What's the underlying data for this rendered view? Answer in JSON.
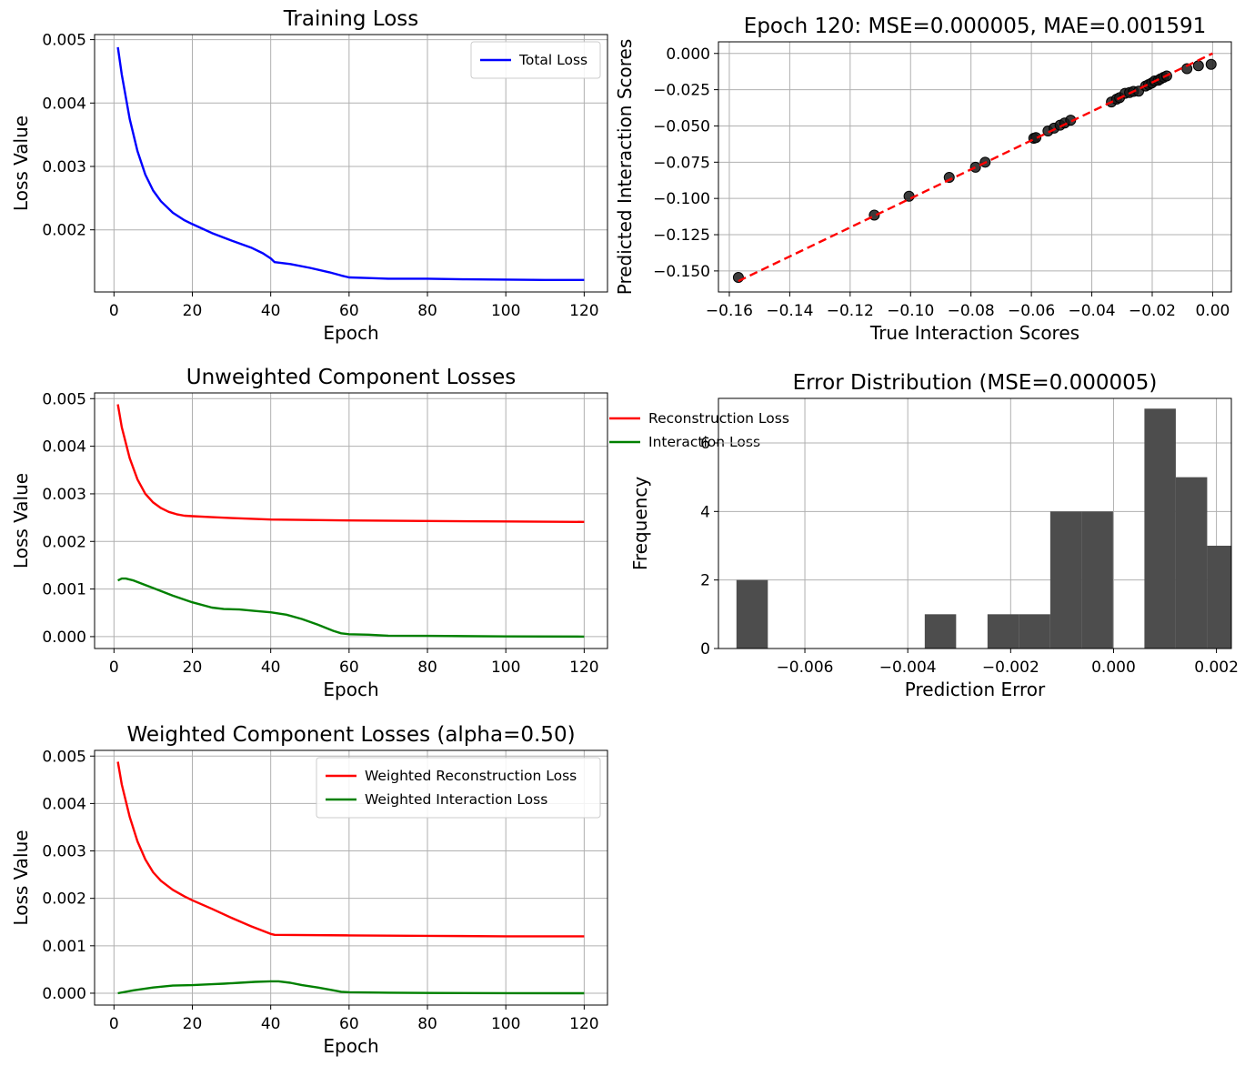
{
  "chart_data": [
    {
      "type": "line",
      "title": "Training Loss",
      "xlabel": "Epoch",
      "ylabel": "Loss Value",
      "xlim": [
        -4.95,
        125.95
      ],
      "ylim": [
        1.02,
        5.08
      ],
      "y_scale": 0.001,
      "xticks": [
        "0",
        "20",
        "40",
        "60",
        "80",
        "100",
        "120"
      ],
      "yticks": [
        "0.002",
        "0.003",
        "0.004",
        "0.005"
      ],
      "grid": true,
      "legend_position": "top-right",
      "series": [
        {
          "name": "Total Loss",
          "color": "#0000ff",
          "x": [
            1,
            2,
            4,
            6,
            8,
            10,
            12,
            15,
            18,
            20,
            25,
            30,
            35,
            38,
            40,
            41,
            45,
            50,
            55,
            58,
            60,
            65,
            70,
            80,
            90,
            100,
            110,
            120
          ],
          "y": [
            4.88,
            4.45,
            3.75,
            3.24,
            2.87,
            2.62,
            2.45,
            2.27,
            2.15,
            2.09,
            1.95,
            1.83,
            1.72,
            1.63,
            1.55,
            1.49,
            1.46,
            1.4,
            1.33,
            1.28,
            1.25,
            1.24,
            1.23,
            1.23,
            1.22,
            1.215,
            1.21,
            1.21
          ]
        }
      ]
    },
    {
      "type": "scatter",
      "title": "Epoch 120: MSE=0.000005, MAE=0.001591",
      "xlabel": "True Interaction Scores",
      "ylabel": "Predicted Interaction Scores",
      "xlim": [
        -0.1636,
        0.0062
      ],
      "ylim": [
        -0.1645,
        0.008
      ],
      "xticks": [
        "−0.16",
        "−0.14",
        "−0.12",
        "−0.10",
        "−0.08",
        "−0.06",
        "−0.04",
        "−0.02",
        "0.00"
      ],
      "yticks": [
        "0.000",
        "−0.025",
        "−0.050",
        "−0.075",
        "−0.100",
        "−0.125",
        "−0.150"
      ],
      "grid": true,
      "reference_line": {
        "style": "dashed",
        "color": "#ff0000",
        "x": [
          -0.157,
          0.0
        ],
        "y": [
          -0.157,
          0.0
        ]
      },
      "series": [
        {
          "name": "",
          "color": "#1a1a1a",
          "x": [
            -0.157,
            -0.112,
            -0.1005,
            -0.0872,
            -0.0785,
            -0.0753,
            -0.0592,
            -0.0585,
            -0.0545,
            -0.0525,
            -0.0505,
            -0.049,
            -0.047,
            -0.0335,
            -0.0318,
            -0.0308,
            -0.029,
            -0.0275,
            -0.0262,
            -0.0245,
            -0.0222,
            -0.0212,
            -0.0202,
            -0.0192,
            -0.018,
            -0.0172,
            -0.0162,
            -0.0152,
            -0.0085,
            -0.0047,
            -0.0005
          ],
          "y": [
            -0.1545,
            -0.1115,
            -0.0985,
            -0.0855,
            -0.0785,
            -0.075,
            -0.0585,
            -0.058,
            -0.0535,
            -0.0515,
            -0.0495,
            -0.048,
            -0.046,
            -0.0335,
            -0.0315,
            -0.0305,
            -0.0275,
            -0.027,
            -0.0262,
            -0.026,
            -0.0225,
            -0.0215,
            -0.0205,
            -0.019,
            -0.0185,
            -0.0175,
            -0.0165,
            -0.0155,
            -0.0105,
            -0.0085,
            -0.0075
          ]
        }
      ]
    },
    {
      "type": "line",
      "title": "Unweighted Component Losses",
      "xlabel": "Epoch",
      "ylabel": "Loss Value",
      "xlim": [
        -4.95,
        125.95
      ],
      "ylim": [
        -0.25,
        5.12
      ],
      "y_scale": 0.001,
      "xticks": [
        "0",
        "20",
        "40",
        "60",
        "80",
        "100",
        "120"
      ],
      "yticks": [
        "0.000",
        "0.001",
        "0.002",
        "0.003",
        "0.004",
        "0.005"
      ],
      "grid": true,
      "legend_position": "top-right",
      "series": [
        {
          "name": "Reconstruction Loss",
          "color": "#ff0000",
          "x": [
            1,
            2,
            4,
            6,
            8,
            10,
            12,
            14,
            16,
            18,
            20,
            25,
            30,
            40,
            50,
            60,
            80,
            100,
            120
          ],
          "y": [
            4.88,
            4.4,
            3.75,
            3.3,
            3.0,
            2.82,
            2.7,
            2.62,
            2.57,
            2.54,
            2.53,
            2.51,
            2.49,
            2.46,
            2.45,
            2.44,
            2.43,
            2.42,
            2.41
          ]
        },
        {
          "name": "Interaction Loss",
          "color": "#008000",
          "x": [
            1,
            2,
            3,
            5,
            10,
            15,
            20,
            25,
            28,
            32,
            36,
            40,
            44,
            48,
            52,
            56,
            58,
            60,
            65,
            70,
            80,
            100,
            120
          ],
          "y": [
            1.18,
            1.22,
            1.22,
            1.18,
            1.02,
            0.86,
            0.72,
            0.61,
            0.58,
            0.57,
            0.54,
            0.51,
            0.46,
            0.37,
            0.25,
            0.12,
            0.07,
            0.05,
            0.04,
            0.02,
            0.015,
            0.005,
            0.0
          ]
        }
      ]
    },
    {
      "type": "bar",
      "title": "Error Distribution (MSE=0.000005)",
      "xlabel": "Prediction Error",
      "ylabel": "Frequency",
      "xlim": [
        -0.00768,
        0.00229
      ],
      "ylim": [
        0,
        7.3
      ],
      "xticks": [
        "−0.006",
        "−0.004",
        "−0.002",
        "0.000",
        "0.002"
      ],
      "yticks": [
        "0",
        "2",
        "4",
        "6"
      ],
      "grid": true,
      "bin_edges": [
        -0.00733,
        -0.00672,
        -0.00611,
        -0.0055,
        -0.00489,
        -0.00428,
        -0.00367,
        -0.00306,
        -0.00245,
        -0.00184,
        -0.00123,
        -0.00062,
        -1e-05,
        0.0006,
        0.00121,
        0.00182,
        0.00243
      ],
      "bar_color": "#4d4d4d",
      "values": [
        2,
        0,
        0,
        0,
        0,
        0,
        1,
        0,
        1,
        1,
        4,
        4,
        0,
        7,
        5,
        3
      ]
    },
    {
      "type": "line",
      "title": "Weighted Component Losses (alpha=0.50)",
      "xlabel": "Epoch",
      "ylabel": "Loss Value",
      "xlim": [
        -4.95,
        125.95
      ],
      "ylim": [
        -0.25,
        5.12
      ],
      "y_scale": 0.001,
      "xticks": [
        "0",
        "20",
        "40",
        "60",
        "80",
        "100",
        "120"
      ],
      "yticks": [
        "0.000",
        "0.001",
        "0.002",
        "0.003",
        "0.004",
        "0.005"
      ],
      "grid": true,
      "legend_position": "top-right",
      "series": [
        {
          "name": "Weighted Reconstruction Loss",
          "color": "#ff0000",
          "x": [
            1,
            2,
            4,
            6,
            8,
            10,
            12,
            15,
            18,
            20,
            25,
            30,
            35,
            40,
            41,
            60,
            80,
            100,
            120
          ],
          "y": [
            4.88,
            4.4,
            3.72,
            3.2,
            2.82,
            2.55,
            2.37,
            2.18,
            2.04,
            1.96,
            1.78,
            1.59,
            1.41,
            1.25,
            1.23,
            1.22,
            1.21,
            1.2,
            1.2
          ]
        },
        {
          "name": "Weighted Interaction Loss",
          "color": "#008000",
          "x": [
            1,
            5,
            10,
            15,
            20,
            25,
            28,
            32,
            36,
            40,
            42,
            45,
            48,
            52,
            56,
            58,
            60,
            65,
            70,
            80,
            100,
            120
          ],
          "y": [
            0.0,
            0.06,
            0.12,
            0.16,
            0.17,
            0.19,
            0.2,
            0.22,
            0.24,
            0.25,
            0.25,
            0.22,
            0.17,
            0.12,
            0.06,
            0.03,
            0.02,
            0.015,
            0.01,
            0.005,
            0.002,
            0.0
          ]
        }
      ]
    }
  ]
}
